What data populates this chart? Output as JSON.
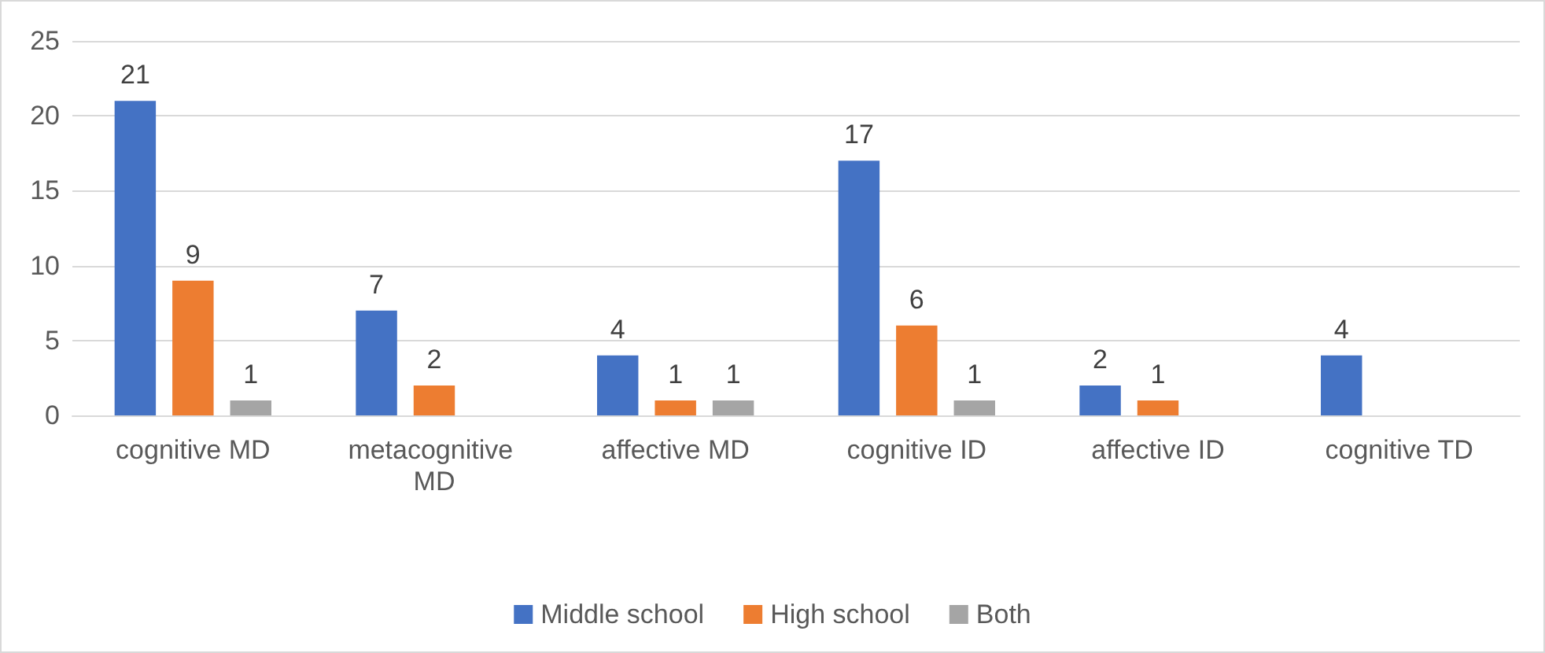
{
  "chart_data": {
    "type": "bar",
    "categories": [
      "cognitive MD",
      "metacognitive MD",
      "affective MD",
      "cognitive ID",
      "affective ID",
      "cognitive TD"
    ],
    "series": [
      {
        "name": "Middle school",
        "color": "#4472c4",
        "values": [
          21,
          7,
          4,
          17,
          2,
          4
        ]
      },
      {
        "name": "High school",
        "color": "#ed7d31",
        "values": [
          9,
          2,
          1,
          6,
          1,
          null
        ]
      },
      {
        "name": "Both",
        "color": "#a5a5a5",
        "values": [
          1,
          null,
          1,
          1,
          null,
          null
        ]
      }
    ],
    "ylim": [
      0,
      25
    ],
    "yticks": [
      0,
      5,
      10,
      15,
      20,
      25
    ],
    "grid": "y",
    "legend": "bottom",
    "data_labels": true
  }
}
